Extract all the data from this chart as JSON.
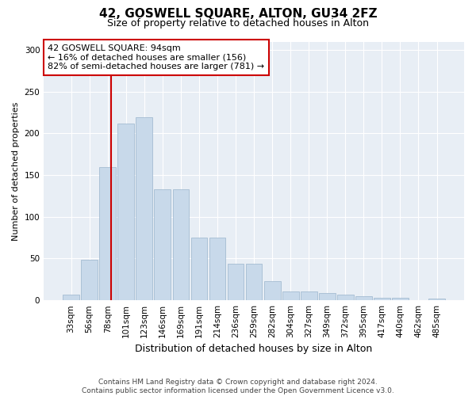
{
  "title": "42, GOSWELL SQUARE, ALTON, GU34 2FZ",
  "subtitle": "Size of property relative to detached houses in Alton",
  "xlabel": "Distribution of detached houses by size in Alton",
  "ylabel": "Number of detached properties",
  "bar_labels": [
    "33sqm",
    "56sqm",
    "78sqm",
    "101sqm",
    "123sqm",
    "146sqm",
    "169sqm",
    "191sqm",
    "214sqm",
    "236sqm",
    "259sqm",
    "282sqm",
    "304sqm",
    "327sqm",
    "349sqm",
    "372sqm",
    "395sqm",
    "417sqm",
    "440sqm",
    "462sqm",
    "485sqm"
  ],
  "bar_values": [
    7,
    49,
    160,
    212,
    219,
    133,
    133,
    75,
    75,
    44,
    44,
    23,
    11,
    11,
    9,
    7,
    5,
    3,
    3,
    0,
    2
  ],
  "bar_color": "#c8d9ea",
  "bar_edgecolor": "#9ab4cc",
  "vline_color": "#cc0000",
  "annotation_text": "42 GOSWELL SQUARE: 94sqm\n← 16% of detached houses are smaller (156)\n82% of semi-detached houses are larger (781) →",
  "annotation_box_color": "#ffffff",
  "annotation_box_edgecolor": "#cc0000",
  "ylim": [
    0,
    310
  ],
  "yticks": [
    0,
    50,
    100,
    150,
    200,
    250,
    300
  ],
  "plot_bg_color": "#e8eef5",
  "footer": "Contains HM Land Registry data © Crown copyright and database right 2024.\nContains public sector information licensed under the Open Government Licence v3.0.",
  "title_fontsize": 11,
  "subtitle_fontsize": 9,
  "xlabel_fontsize": 9,
  "ylabel_fontsize": 8,
  "tick_fontsize": 7.5,
  "footer_fontsize": 6.5,
  "annotation_fontsize": 8
}
